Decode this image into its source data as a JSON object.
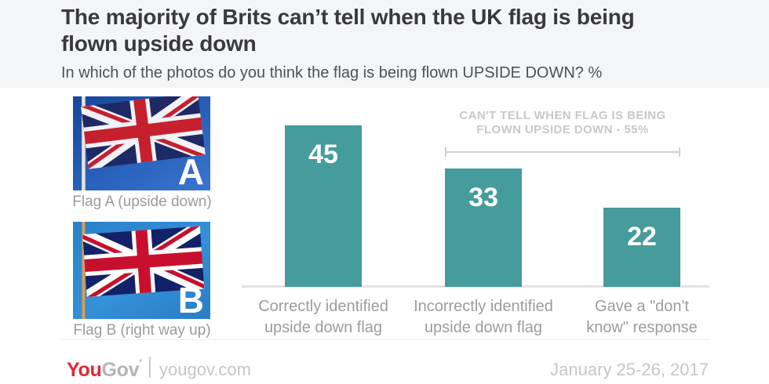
{
  "header": {
    "title_line1": "The majority of Brits can’t tell when the UK flag is being",
    "title_line2": "flown upside down",
    "subtitle": "In which of the photos do you think the flag is being flown UPSIDE DOWN? %"
  },
  "flags": {
    "a": {
      "letter": "A",
      "caption": "Flag A (upside down)"
    },
    "b": {
      "letter": "B",
      "caption": "Flag B (right way up)"
    }
  },
  "chart_data": {
    "type": "bar",
    "categories": [
      "Correctly identified upside down flag",
      "Incorrectly identified upside down flag",
      "Gave a \"don't know\" response"
    ],
    "category_lines": [
      [
        "Correctly identified",
        "upside down flag"
      ],
      [
        "Incorrectly identified",
        "upside down flag"
      ],
      [
        "Gave a \"don't",
        "know\" response"
      ]
    ],
    "values": [
      45,
      33,
      22
    ],
    "ylim": [
      0,
      50
    ],
    "bar_color": "#469b9c",
    "value_label_color": "#ffffff",
    "grid": false,
    "legend": "none",
    "annotation": {
      "line1": "CAN'T TELL WHEN FLAG IS BEING",
      "line2": "FLOWN UPSIDE DOWN - 55%",
      "total": 55,
      "spans_categories": [
        1,
        2
      ]
    }
  },
  "footer": {
    "logo_you": "You",
    "logo_gov": "Gov",
    "site": "yougov.com",
    "date": "January 25-26, 2017"
  },
  "colors": {
    "header_bg": "#f4f5f6",
    "title": "#3a3a3c",
    "bar_teal": "#469b9c",
    "label_gray": "#9c9c9c",
    "annotation_gray": "#c8c8c8",
    "logo_red": "#e32636"
  }
}
